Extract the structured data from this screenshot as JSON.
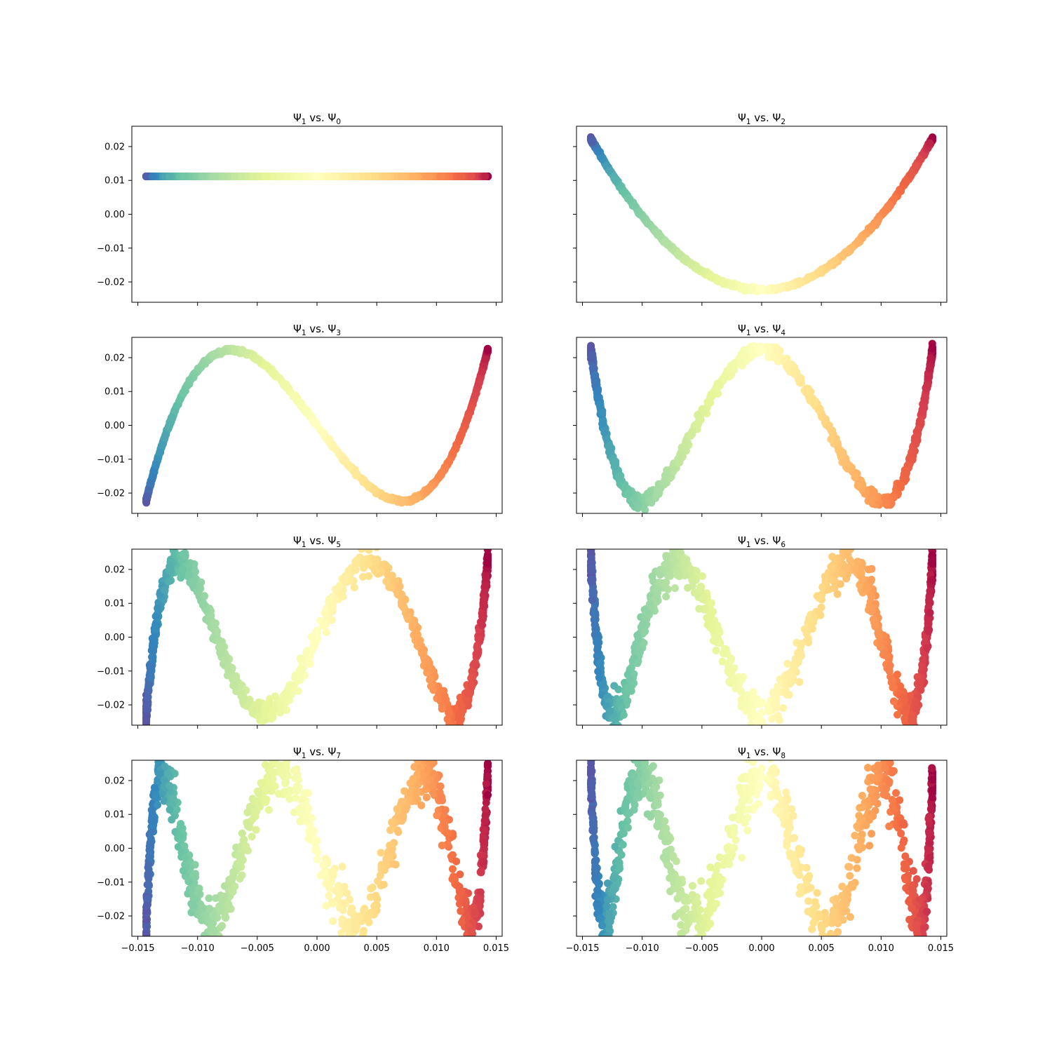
{
  "figure": {
    "cmap": "Spectral",
    "point_count": 1000
  },
  "x_axis": {
    "range": [
      -0.0155,
      0.0155
    ],
    "ticks": [
      -0.015,
      -0.01,
      -0.005,
      0.0,
      0.005,
      0.01,
      0.015
    ],
    "tick_labels": [
      "−0.015",
      "−0.010",
      "−0.005",
      "0.000",
      "0.005",
      "0.010",
      "0.015"
    ]
  },
  "y_axis": {
    "range": [
      -0.026,
      0.026
    ],
    "ticks": [
      0.02,
      0.01,
      0.0,
      -0.01,
      -0.02
    ],
    "tick_labels": [
      "0.02",
      "0.01",
      "0.00",
      "−0.01",
      "−0.02"
    ]
  },
  "chart_data": [
    {
      "type": "scatter",
      "title_base": "Ψ",
      "title_sub1": "1",
      "title_mid": " vs. Ψ",
      "title_sub2": "0",
      "y_index": 0,
      "shape": "constant",
      "y_value": 0.0112
    },
    {
      "type": "scatter",
      "title_base": "Ψ",
      "title_sub1": "1",
      "title_mid": " vs. Ψ",
      "title_sub2": "2",
      "y_index": 2,
      "shape": "quadratic-bowl"
    },
    {
      "type": "scatter",
      "title_base": "Ψ",
      "title_sub1": "1",
      "title_mid": " vs. Ψ",
      "title_sub2": "3",
      "y_index": 3,
      "shape": "cubic-s"
    },
    {
      "type": "scatter",
      "title_base": "Ψ",
      "title_sub1": "1",
      "title_mid": " vs. Ψ",
      "title_sub2": "4",
      "y_index": 4,
      "shape": "quartic-band"
    },
    {
      "type": "scatter",
      "title_base": "Ψ",
      "title_sub1": "1",
      "title_mid": " vs. Ψ",
      "title_sub2": "5",
      "y_index": 5,
      "shape": "spread-cloud"
    },
    {
      "type": "scatter",
      "title_base": "Ψ",
      "title_sub1": "1",
      "title_mid": " vs. Ψ",
      "title_sub2": "6",
      "y_index": 6,
      "shape": "bowtie"
    },
    {
      "type": "scatter",
      "title_base": "Ψ",
      "title_sub1": "1",
      "title_mid": " vs. Ψ",
      "title_sub2": "7",
      "y_index": 7,
      "shape": "sine-loop"
    },
    {
      "type": "scatter",
      "title_base": "Ψ",
      "title_sub1": "1",
      "title_mid": " vs. Ψ",
      "title_sub2": "8",
      "y_index": 8,
      "shape": "spread-cloud"
    }
  ]
}
